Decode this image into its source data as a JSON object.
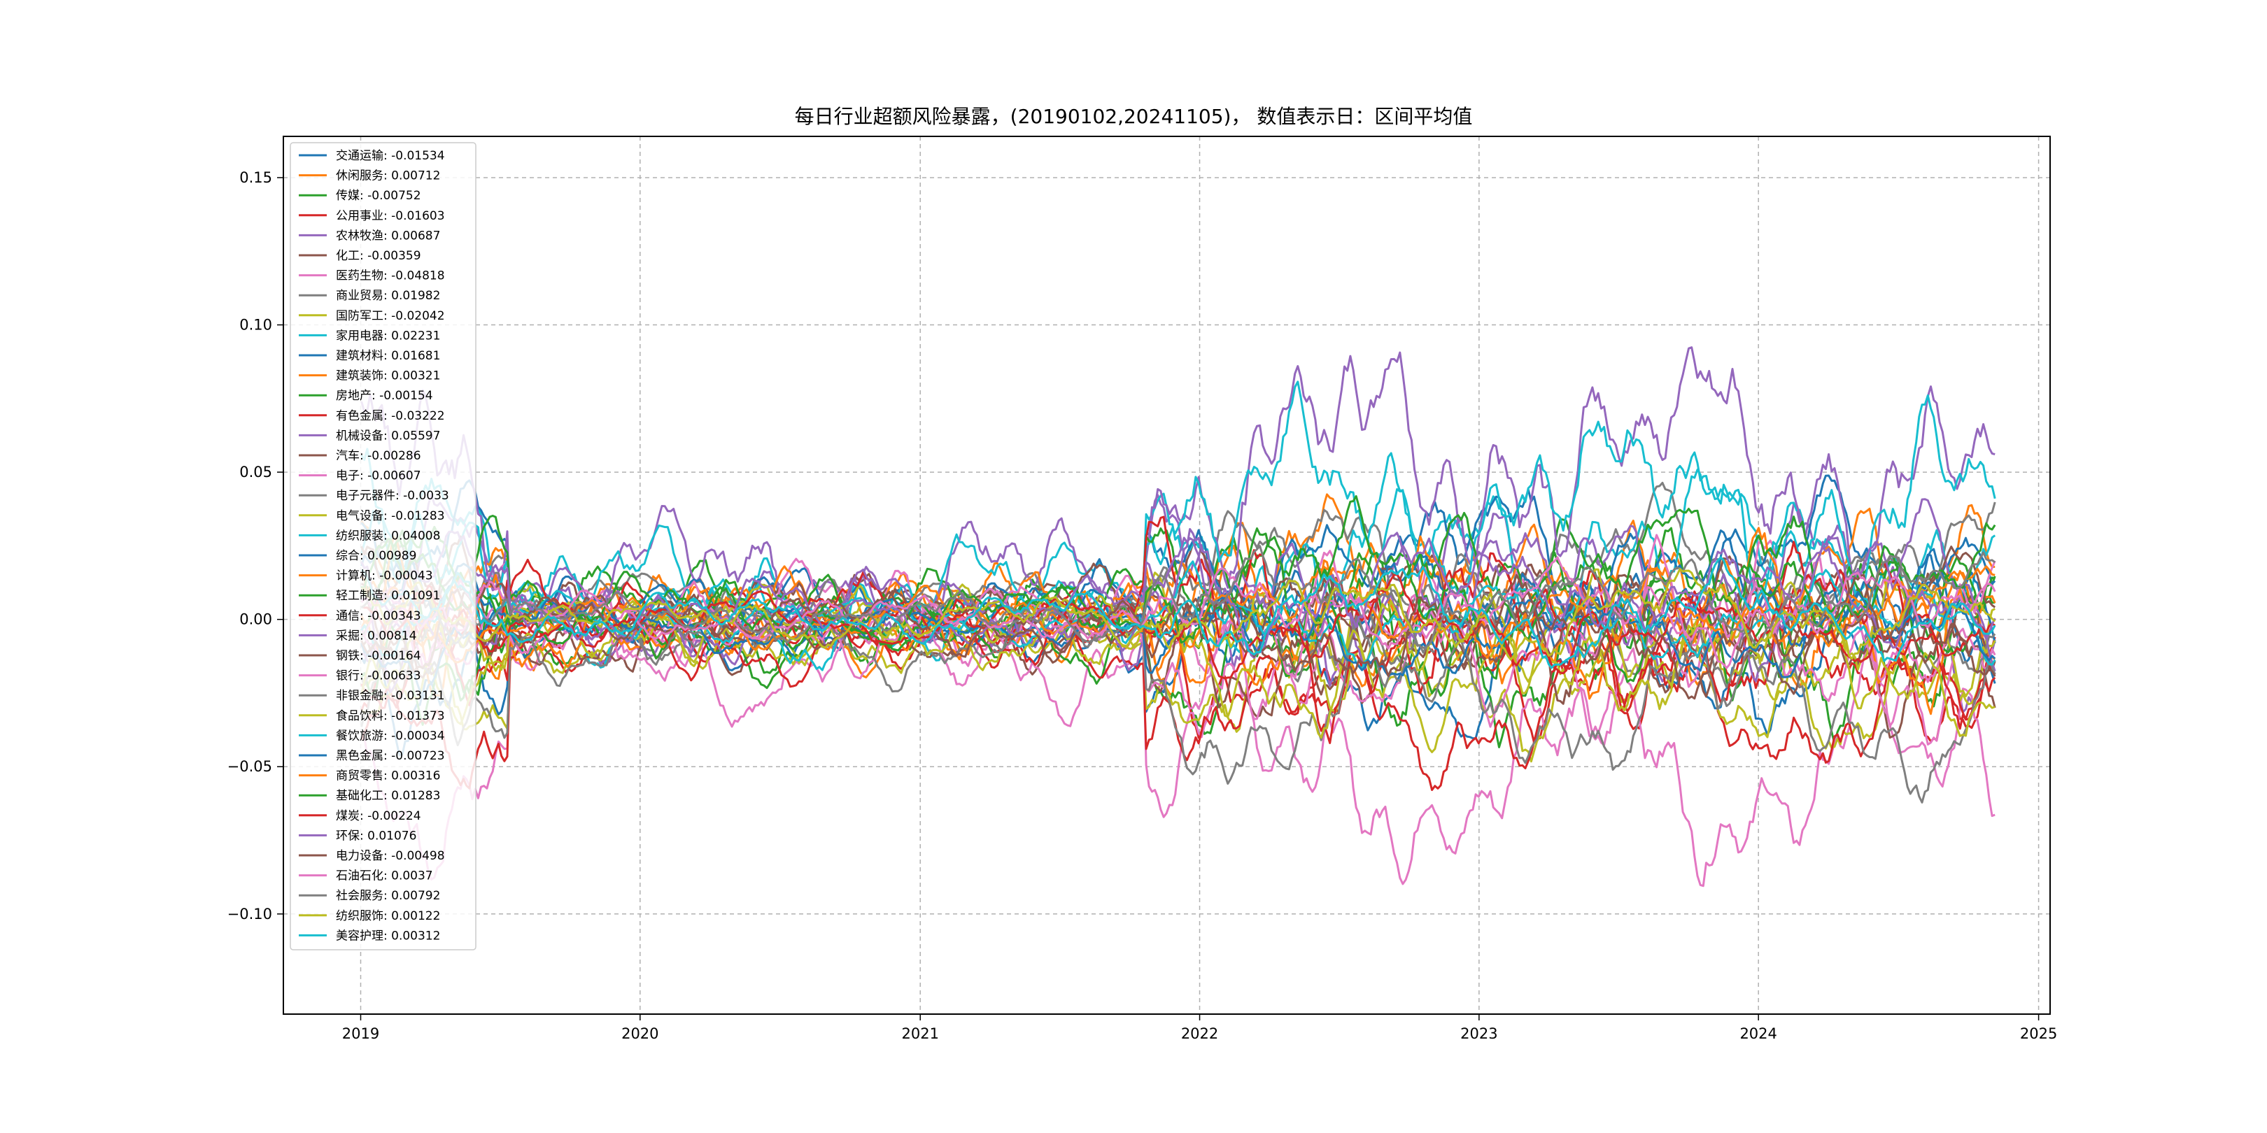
{
  "chart_data": {
    "type": "line",
    "title": "每日行业超额风险暴露，(20190102,20241105)， 数值表示日：区间平均值",
    "xlabel": "",
    "ylabel": "",
    "x_range": [
      "2019-01-02",
      "2024-11-05"
    ],
    "xlim": [
      "2018-09-22",
      "2025-01-16"
    ],
    "ylim": [
      -0.134,
      0.164
    ],
    "x_ticks": [
      "2019",
      "2020",
      "2021",
      "2022",
      "2023",
      "2024",
      "2025"
    ],
    "y_ticks": [
      "0.15",
      "0.10",
      "0.05",
      "0.00",
      "−0.05",
      "−0.10"
    ],
    "y_tick_values": [
      0.15,
      0.1,
      0.05,
      0.0,
      -0.05,
      -0.1
    ],
    "grid": true,
    "legend_position": "top-left",
    "series": [
      {
        "name": "交通运输",
        "mean": -0.01534,
        "mean_label": "-0.01534",
        "color": "#1f77b4",
        "amplitude": 0.025
      },
      {
        "name": "休闲服务",
        "mean": 0.00712,
        "mean_label": "0.00712",
        "color": "#ff7f0e",
        "amplitude": 0.03
      },
      {
        "name": "传媒",
        "mean": -0.00752,
        "mean_label": "-0.00752",
        "color": "#2ca02c",
        "amplitude": 0.03
      },
      {
        "name": "公用事业",
        "mean": -0.01603,
        "mean_label": "-0.01603",
        "color": "#d62728",
        "amplitude": 0.025
      },
      {
        "name": "农林牧渔",
        "mean": 0.00687,
        "mean_label": "0.00687",
        "color": "#9467bd",
        "amplitude": 0.03
      },
      {
        "name": "化工",
        "mean": -0.00359,
        "mean_label": "-0.00359",
        "color": "#8c564b",
        "amplitude": 0.025
      },
      {
        "name": "医药生物",
        "mean": -0.04818,
        "mean_label": "-0.04818",
        "color": "#e377c2",
        "amplitude": 0.035
      },
      {
        "name": "商业贸易",
        "mean": 0.01982,
        "mean_label": "0.01982",
        "color": "#7f7f7f",
        "amplitude": 0.02
      },
      {
        "name": "国防军工",
        "mean": -0.02042,
        "mean_label": "-0.02042",
        "color": "#bcbd22",
        "amplitude": 0.025
      },
      {
        "name": "家用电器",
        "mean": 0.02231,
        "mean_label": "0.02231",
        "color": "#17becf",
        "amplitude": 0.03
      },
      {
        "name": "建筑材料",
        "mean": 0.01681,
        "mean_label": "0.01681",
        "color": "#1f77b4",
        "amplitude": 0.025
      },
      {
        "name": "建筑装饰",
        "mean": 0.00321,
        "mean_label": "0.00321",
        "color": "#ff7f0e",
        "amplitude": 0.025
      },
      {
        "name": "房地产",
        "mean": -0.00154,
        "mean_label": "-0.00154",
        "color": "#2ca02c",
        "amplitude": 0.03
      },
      {
        "name": "有色金属",
        "mean": -0.03222,
        "mean_label": "-0.03222",
        "color": "#d62728",
        "amplitude": 0.025
      },
      {
        "name": "机械设备",
        "mean": 0.05597,
        "mean_label": "0.05597",
        "color": "#9467bd",
        "amplitude": 0.045
      },
      {
        "name": "汽车",
        "mean": -0.00286,
        "mean_label": "-0.00286",
        "color": "#8c564b",
        "amplitude": 0.03
      },
      {
        "name": "电子",
        "mean": -0.00607,
        "mean_label": "-0.00607",
        "color": "#e377c2",
        "amplitude": 0.03
      },
      {
        "name": "电子元器件",
        "mean": -0.0033,
        "mean_label": "-0.0033",
        "color": "#7f7f7f",
        "amplitude": 0.02
      },
      {
        "name": "电气设备",
        "mean": -0.01283,
        "mean_label": "-0.01283",
        "color": "#bcbd22",
        "amplitude": 0.025
      },
      {
        "name": "纺织服装",
        "mean": 0.04008,
        "mean_label": "0.04008",
        "color": "#17becf",
        "amplitude": 0.035
      },
      {
        "name": "综合",
        "mean": 0.00989,
        "mean_label": "0.00989",
        "color": "#1f77b4",
        "amplitude": 0.02
      },
      {
        "name": "计算机",
        "mean": -0.00043,
        "mean_label": "-0.00043",
        "color": "#ff7f0e",
        "amplitude": 0.03
      },
      {
        "name": "轻工制造",
        "mean": 0.01091,
        "mean_label": "0.01091",
        "color": "#2ca02c",
        "amplitude": 0.025
      },
      {
        "name": "通信",
        "mean": -0.00343,
        "mean_label": "-0.00343",
        "color": "#d62728",
        "amplitude": 0.03
      },
      {
        "name": "采掘",
        "mean": 0.00814,
        "mean_label": "0.00814",
        "color": "#9467bd",
        "amplitude": 0.025
      },
      {
        "name": "钢铁",
        "mean": -0.00164,
        "mean_label": "-0.00164",
        "color": "#8c564b",
        "amplitude": 0.02
      },
      {
        "name": "银行",
        "mean": -0.00633,
        "mean_label": "-0.00633",
        "color": "#e377c2",
        "amplitude": 0.025
      },
      {
        "name": "非银金融",
        "mean": -0.03131,
        "mean_label": "-0.03131",
        "color": "#7f7f7f",
        "amplitude": 0.025
      },
      {
        "name": "食品饮料",
        "mean": -0.01373,
        "mean_label": "-0.01373",
        "color": "#bcbd22",
        "amplitude": 0.025
      },
      {
        "name": "餐饮旅游",
        "mean": -0.00034,
        "mean_label": "-0.00034",
        "color": "#17becf",
        "amplitude": 0.015
      },
      {
        "name": "黑色金属",
        "mean": -0.00723,
        "mean_label": "-0.00723",
        "color": "#1f77b4",
        "amplitude": 0.015
      },
      {
        "name": "商贸零售",
        "mean": 0.00316,
        "mean_label": "0.00316",
        "color": "#ff7f0e",
        "amplitude": 0.015
      },
      {
        "name": "基础化工",
        "mean": 0.01283,
        "mean_label": "0.01283",
        "color": "#2ca02c",
        "amplitude": 0.02
      },
      {
        "name": "煤炭",
        "mean": -0.00224,
        "mean_label": "-0.00224",
        "color": "#d62728",
        "amplitude": 0.015
      },
      {
        "name": "环保",
        "mean": 0.01076,
        "mean_label": "0.01076",
        "color": "#9467bd",
        "amplitude": 0.02
      },
      {
        "name": "电力设备",
        "mean": -0.00498,
        "mean_label": "-0.00498",
        "color": "#8c564b",
        "amplitude": 0.02
      },
      {
        "name": "石油石化",
        "mean": 0.0037,
        "mean_label": "0.0037",
        "color": "#e377c2",
        "amplitude": 0.015
      },
      {
        "name": "社会服务",
        "mean": 0.00792,
        "mean_label": "0.00792",
        "color": "#7f7f7f",
        "amplitude": 0.015
      },
      {
        "name": "纺织服饰",
        "mean": 0.00122,
        "mean_label": "0.00122",
        "color": "#bcbd22",
        "amplitude": 0.015
      },
      {
        "name": "美容护理",
        "mean": 0.00312,
        "mean_label": "0.00312",
        "color": "#17becf",
        "amplitude": 0.015
      }
    ]
  }
}
